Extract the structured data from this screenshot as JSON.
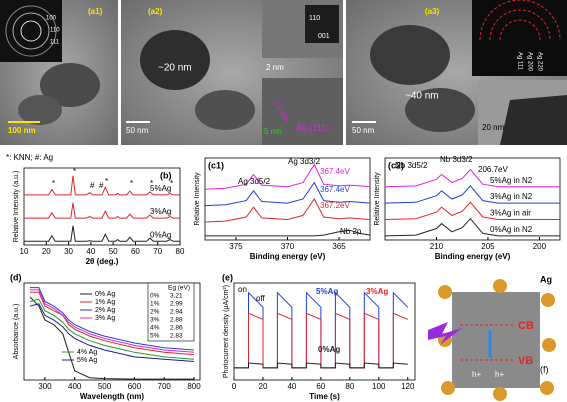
{
  "figure": {
    "a1": {
      "label": "(a1)",
      "scale": "100 nm",
      "rings": [
        "100",
        "110",
        "111"
      ]
    },
    "a2": {
      "label": "(a2)",
      "size": "~20 nm",
      "scale": "50 nm",
      "inset_scale": "2 nm",
      "fft": [
        "110",
        "001"
      ],
      "spacing": "2.3 nm",
      "phase": "Ag (111)",
      "inset_scale2": "5 nm"
    },
    "a3": {
      "label": "(a3)",
      "size": "~40 nm",
      "scale": "50 nm",
      "inset_scale": "20 nm",
      "rings": [
        "Ag 111",
        "Ag 200",
        "Ag 220"
      ]
    },
    "f": {
      "label": "(f)",
      "metal": "Ag",
      "cb": "CB",
      "vb": "VB",
      "holes": [
        "h+",
        "h+"
      ]
    }
  },
  "chart_data": [
    {
      "type": "line",
      "label": "(b)",
      "xlabel": "2θ (deg.)",
      "ylabel": "Relative Intensity (a.u.)",
      "xlim": [
        10,
        80
      ],
      "xticks": [
        10,
        20,
        30,
        40,
        50,
        60,
        70,
        80
      ],
      "ylim": [
        0,
        100
      ],
      "annotations": [
        "*: KNN;  #: Ag",
        "*",
        "*",
        "#",
        "#",
        "*",
        "*",
        "*",
        "*"
      ],
      "x": [
        10,
        21,
        22.5,
        24,
        31,
        32,
        33,
        38,
        39.5,
        41,
        45,
        46.5,
        48,
        51,
        52,
        53,
        56,
        57.5,
        59,
        65,
        66.5,
        68,
        74,
        75.5,
        77,
        80
      ],
      "series": [
        {
          "name": "5%Ag",
          "color": "#e0262a",
          "values": [
            65,
            65,
            72,
            65,
            65,
            90,
            65,
            65,
            68,
            65,
            65,
            75,
            65,
            65,
            67,
            65,
            65,
            70,
            65,
            65,
            69,
            65,
            65,
            67,
            65,
            65
          ]
        },
        {
          "name": "3%Ag",
          "color": "#e0262a",
          "values": [
            35,
            35,
            42,
            35,
            35,
            55,
            35,
            35,
            37,
            35,
            35,
            44,
            35,
            35,
            37,
            35,
            35,
            40,
            35,
            35,
            39,
            35,
            35,
            37,
            35,
            35
          ]
        },
        {
          "name": "0%Ag",
          "color": "#222222",
          "values": [
            5,
            5,
            12,
            5,
            5,
            25,
            5,
            5,
            5.5,
            5,
            5,
            14,
            5,
            5,
            7,
            5,
            5,
            10,
            5,
            5,
            9,
            5,
            5,
            7,
            5,
            5
          ]
        }
      ]
    },
    {
      "type": "line",
      "label": "(c1)",
      "xlabel": "Binding energy (eV)",
      "ylabel": "Relative Intensity",
      "xlim": [
        378,
        362
      ],
      "xticks": [
        375,
        370,
        365
      ],
      "ylim": [
        0,
        100
      ],
      "annotations": [
        "Ag 3d5/2",
        "Ag 3d3/2",
        "367.4eV",
        "367.4eV",
        "367.2eV",
        "Nb 2p"
      ],
      "x": [
        378,
        376,
        374,
        373.3,
        372.5,
        370,
        368.5,
        367.4,
        366.5,
        365,
        364,
        363,
        362
      ],
      "series": [
        {
          "color": "#e020e0",
          "values": [
            62,
            63,
            68,
            80,
            67,
            65,
            70,
            92,
            68,
            66,
            67,
            66,
            65
          ]
        },
        {
          "color": "#2040d0",
          "values": [
            42,
            43,
            48,
            60,
            47,
            45,
            50,
            70,
            48,
            46,
            47,
            46,
            45
          ]
        },
        {
          "color": "#e0262a",
          "values": [
            22,
            23,
            28,
            40,
            27,
            25,
            30,
            50,
            28,
            26,
            27,
            26,
            25
          ]
        },
        {
          "color": "#222222",
          "values": [
            5,
            5,
            5,
            5,
            5,
            5,
            5,
            5,
            6,
            10,
            12,
            8,
            6
          ]
        }
      ]
    },
    {
      "type": "line",
      "label": "(c2)",
      "xlabel": "Binding energy (eV)",
      "ylabel": "Relative Intensity",
      "xlim": [
        215,
        198
      ],
      "xticks": [
        210,
        205,
        200
      ],
      "ylim": [
        0,
        100
      ],
      "annotations": [
        "Nb 3d5/2",
        "Nb 3d3/2",
        "206.7eV"
      ],
      "x": [
        215,
        212,
        210,
        209.5,
        208.5,
        207.5,
        206.7,
        205.5,
        204,
        202,
        198
      ],
      "series": [
        {
          "name": "5%Ag in N2",
          "color": "#e020e0",
          "values": [
            65,
            66,
            74,
            80,
            70,
            75,
            86,
            68,
            65,
            65,
            65
          ]
        },
        {
          "name": "3%Ag in N2",
          "color": "#2040d0",
          "values": [
            45,
            46,
            54,
            60,
            50,
            55,
            66,
            48,
            45,
            45,
            45
          ]
        },
        {
          "name": "3%Ag in air",
          "color": "#e0262a",
          "values": [
            25,
            26,
            34,
            40,
            30,
            35,
            46,
            28,
            25,
            25,
            25
          ]
        },
        {
          "name": "0%Ag in N2",
          "color": "#222222",
          "values": [
            5,
            6,
            14,
            20,
            10,
            15,
            26,
            8,
            5,
            5,
            5
          ]
        }
      ]
    },
    {
      "type": "line",
      "label": "(d)",
      "xlabel": "Wavelength (nm)",
      "ylabel": "Absorbance (a.u.)",
      "xlim": [
        230,
        820
      ],
      "xticks": [
        300,
        400,
        500,
        600,
        700,
        800
      ],
      "ylim": [
        0,
        2.1
      ],
      "table": {
        "columns": [
          "Eg (eV)"
        ],
        "rows": [
          [
            "0%",
            3.21
          ],
          [
            "1%",
            2.99
          ],
          [
            "2%",
            2.94
          ],
          [
            "3%",
            2.88
          ],
          [
            "4%",
            2.86
          ],
          [
            "5%",
            2.83
          ]
        ]
      },
      "x": [
        250,
        280,
        300,
        330,
        360,
        380,
        400,
        450,
        500,
        600,
        700,
        800
      ],
      "series": [
        {
          "name": "0% Ag",
          "color": "#222222",
          "values": [
            1.8,
            1.6,
            1.3,
            1.2,
            1.0,
            0.6,
            0.2,
            0.05,
            0.03,
            0.02,
            0.02,
            0.02
          ]
        },
        {
          "name": "1% Ag",
          "color": "#e0262a",
          "values": [
            1.9,
            1.9,
            1.6,
            1.5,
            1.4,
            1.2,
            1.1,
            0.95,
            0.85,
            0.7,
            0.6,
            0.55
          ]
        },
        {
          "name": "2% Ag",
          "color": "#2040d0",
          "values": [
            2.0,
            2.0,
            1.7,
            1.6,
            1.45,
            1.3,
            1.2,
            1.05,
            0.95,
            0.8,
            0.7,
            0.65
          ]
        },
        {
          "name": "3% Ag",
          "color": "#e020e0",
          "values": [
            1.95,
            1.95,
            1.65,
            1.55,
            1.4,
            1.25,
            1.15,
            1.0,
            0.9,
            0.75,
            0.65,
            0.6
          ]
        },
        {
          "name": "4% Ag",
          "color": "#2a9a2a",
          "values": [
            1.7,
            1.75,
            1.5,
            1.4,
            1.25,
            1.1,
            1.0,
            0.85,
            0.75,
            0.6,
            0.5,
            0.45
          ]
        },
        {
          "name": "5% Ag",
          "color": "#1a1a90",
          "values": [
            1.6,
            1.65,
            1.4,
            1.3,
            1.15,
            1.0,
            0.9,
            0.75,
            0.65,
            0.5,
            0.45,
            0.4
          ]
        }
      ]
    },
    {
      "type": "line",
      "label": "(e)",
      "xlabel": "Time (s)",
      "ylabel": "Photocurrent density (μA/cm²)",
      "xlim": [
        0,
        125
      ],
      "xticks": [
        0,
        20,
        40,
        60,
        80,
        100,
        120
      ],
      "ylim": [
        -1,
        7
      ],
      "annotations": [
        "on",
        "off"
      ],
      "x": [
        0,
        10,
        10,
        20,
        20,
        30,
        30,
        40,
        40,
        50,
        50,
        60,
        60,
        70,
        70,
        80,
        80,
        90,
        90,
        100,
        100,
        110,
        110,
        120
      ],
      "series": [
        {
          "name": "5%Ag",
          "color": "#2040d0",
          "values": [
            0,
            0,
            6.2,
            5,
            0,
            0,
            6.2,
            5,
            0,
            0,
            6.2,
            5,
            0,
            0,
            6.2,
            5,
            0,
            0,
            6.2,
            5,
            0,
            0,
            6.2,
            5
          ]
        },
        {
          "name": "3%Ag",
          "color": "#e0262a",
          "values": [
            0,
            0,
            4.5,
            4,
            0,
            0,
            4.5,
            4,
            0,
            0,
            4.5,
            4,
            0,
            0,
            4.5,
            4,
            0,
            0,
            4.5,
            4,
            0,
            0,
            4.5,
            4
          ]
        },
        {
          "name": "0%Ag",
          "color": "#222222",
          "values": [
            0,
            0,
            0.4,
            0.3,
            0,
            0,
            0.4,
            0.3,
            0,
            0,
            0.4,
            0.3,
            0,
            0,
            0.4,
            0.3,
            0,
            0,
            0.4,
            0.3,
            0,
            0,
            0.4,
            0.3
          ]
        }
      ]
    }
  ]
}
